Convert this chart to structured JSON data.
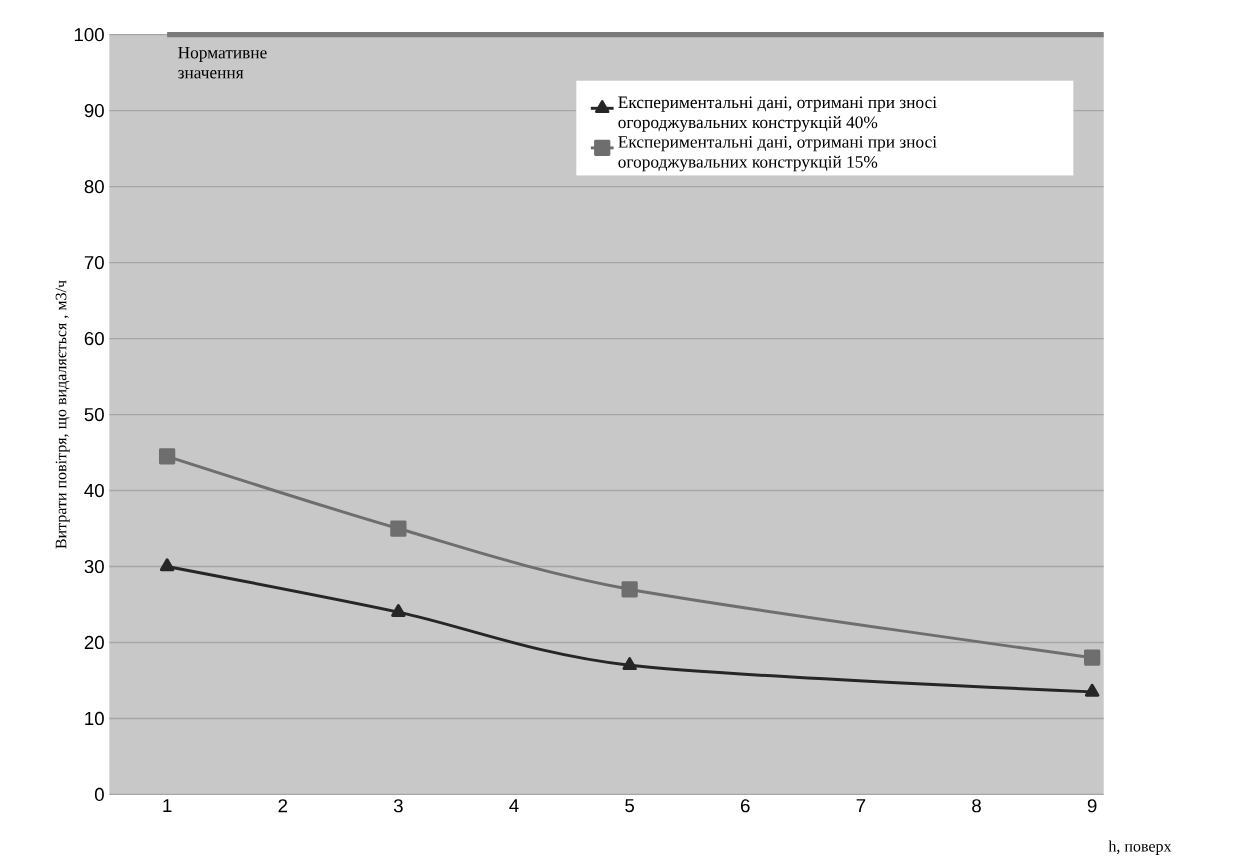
{
  "chart_data": {
    "type": "line",
    "xlabel": "h, поверх",
    "ylabel": "Витрати повітря, що видаляється , м3/ч",
    "x": [
      1,
      3,
      5,
      9
    ],
    "series": [
      {
        "name": "Експериментальні дані, отримані при зносі огороджувальних конструкцій 40%",
        "color": "#262626",
        "marker": "triangle",
        "values": [
          30,
          24,
          17,
          13.5
        ]
      },
      {
        "name": "Експериментальні дані, отримані при зносі огороджувальних конструкцій 15%",
        "color": "#6e6e6e",
        "marker": "square",
        "values": [
          44.5,
          35,
          27,
          18
        ]
      }
    ],
    "xlim": [
      0.5,
      9.1
    ],
    "xticks": [
      1,
      2,
      3,
      4,
      5,
      6,
      7,
      8,
      9
    ],
    "ylim": [
      0,
      100
    ],
    "yticks": [
      0,
      10,
      20,
      30,
      40,
      50,
      60,
      70,
      80,
      90,
      100
    ],
    "grid": "y",
    "legend": "top right",
    "line_style": "solid",
    "ref_lines": [
      {
        "axis": "y",
        "value": 100,
        "label": "Нормативне значення",
        "color": "#7a7a7a"
      }
    ]
  }
}
